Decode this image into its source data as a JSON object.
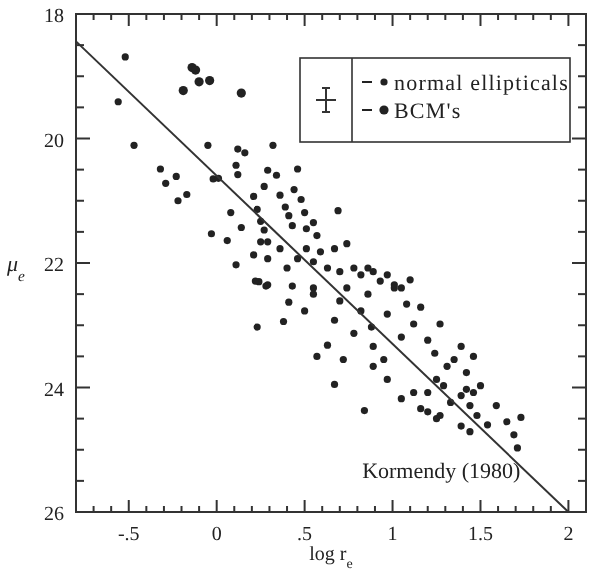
{
  "chart_data": {
    "type": "scatter",
    "xlabel": "log r$_{e}$",
    "ylabel": "μ$_{e}$",
    "xlim": [
      -0.8,
      2.1
    ],
    "ylim": [
      26,
      18
    ],
    "xticks": [
      {
        "value": -0.5,
        "label": "-.5"
      },
      0,
      {
        "value": 0.5,
        "label": ".5"
      },
      1,
      1.5,
      2,
      {
        "value": -0.7,
        "label": null
      },
      {
        "value": -0.6,
        "label": null
      },
      {
        "value": -0.4,
        "label": null
      },
      {
        "value": -0.3,
        "label": null
      },
      {
        "value": -0.2,
        "label": null
      },
      {
        "value": -0.1,
        "label": null
      },
      {
        "value": 0.1,
        "label": null
      },
      {
        "value": 0.2,
        "label": null
      },
      {
        "value": 0.3,
        "label": null
      },
      {
        "value": 0.4,
        "label": null
      },
      {
        "value": 0.6,
        "label": null
      },
      {
        "value": 0.7,
        "label": null
      },
      {
        "value": 0.8,
        "label": null
      },
      {
        "value": 0.9,
        "label": null
      },
      {
        "value": 1.1,
        "label": null
      },
      {
        "value": 1.2,
        "label": null
      },
      {
        "value": 1.3,
        "label": null
      },
      {
        "value": 1.4,
        "label": null
      },
      {
        "value": 1.6,
        "label": null
      },
      {
        "value": 1.7,
        "label": null
      },
      {
        "value": 1.8,
        "label": null
      },
      {
        "value": 1.9,
        "label": null
      }
    ],
    "yticks": [
      18,
      20,
      22,
      24,
      26,
      {
        "value": 18.5,
        "label": null
      },
      {
        "value": 19,
        "label": null
      },
      {
        "value": 19.5,
        "label": null
      },
      {
        "value": 20.5,
        "label": null
      },
      {
        "value": 21,
        "label": null
      },
      {
        "value": 21.5,
        "label": null
      },
      {
        "value": 22.5,
        "label": null
      },
      {
        "value": 23,
        "label": null
      },
      {
        "value": 23.5,
        "label": null
      },
      {
        "value": 24.5,
        "label": null
      },
      {
        "value": 25,
        "label": null
      },
      {
        "value": 25.5,
        "label": null
      }
    ],
    "grid": false,
    "legend": "top right",
    "marker": "circle",
    "series": [
      {
        "name": "normal ellipticals",
        "color": "#222222",
        "x": [
          -0.52,
          -0.56,
          -0.47,
          -0.32,
          -0.23,
          -0.29,
          -0.22,
          -0.17,
          -0.05,
          -0.02,
          0.01,
          -0.03,
          0.08,
          0.14,
          0.06,
          0.11,
          0.12,
          0.16,
          0.11,
          0.12,
          0.21,
          0.23,
          0.25,
          0.27,
          0.29,
          0.21,
          0.29,
          0.32,
          0.34,
          0.27,
          0.36,
          0.39,
          0.41,
          0.43,
          0.46,
          0.44,
          0.48,
          0.5,
          0.51,
          0.55,
          0.57,
          0.69,
          0.25,
          0.29,
          0.36,
          0.4,
          0.46,
          0.51,
          0.55,
          0.59,
          0.63,
          0.67,
          0.7,
          0.74,
          0.78,
          0.82,
          0.86,
          0.89,
          0.93,
          0.97,
          1.01,
          1.05,
          1.1,
          0.24,
          0.28,
          0.43,
          0.55,
          0.22,
          0.29,
          0.41,
          0.38,
          0.23,
          0.5,
          0.55,
          0.63,
          0.67,
          0.7,
          0.74,
          0.78,
          0.82,
          0.86,
          0.88,
          0.89,
          0.95,
          0.97,
          1.01,
          1.05,
          1.08,
          1.12,
          1.16,
          1.2,
          1.24,
          1.27,
          1.31,
          1.35,
          1.39,
          1.42,
          1.46,
          1.29,
          1.25,
          1.2,
          0.97,
          1.05,
          1.12,
          1.16,
          1.2,
          1.27,
          1.33,
          1.39,
          1.42,
          1.46,
          1.5,
          1.44,
          1.48,
          1.54,
          1.59,
          1.65,
          1.69,
          1.73,
          1.71,
          1.44,
          1.39,
          1.25,
          0.84,
          0.67,
          0.57,
          0.72,
          0.89
        ],
        "values": [
          18.69,
          19.41,
          20.11,
          20.49,
          20.61,
          20.72,
          21.0,
          20.9,
          20.11,
          20.65,
          20.64,
          21.53,
          21.19,
          21.43,
          21.64,
          22.03,
          20.17,
          20.23,
          20.43,
          20.58,
          20.93,
          21.14,
          21.33,
          21.47,
          21.66,
          21.87,
          20.51,
          20.11,
          20.59,
          20.77,
          20.91,
          21.1,
          21.24,
          21.4,
          20.49,
          20.82,
          20.98,
          21.19,
          21.45,
          21.35,
          21.56,
          21.16,
          21.66,
          21.93,
          21.77,
          22.08,
          21.93,
          21.77,
          21.98,
          21.82,
          22.08,
          21.77,
          22.14,
          21.69,
          22.08,
          22.19,
          22.08,
          22.14,
          22.29,
          22.19,
          22.35,
          22.4,
          22.27,
          22.3,
          22.37,
          22.37,
          22.4,
          22.29,
          22.35,
          22.63,
          22.94,
          23.03,
          22.77,
          22.5,
          23.32,
          22.92,
          22.61,
          22.4,
          23.13,
          22.77,
          22.5,
          23.03,
          23.34,
          23.55,
          22.82,
          22.4,
          23.19,
          22.66,
          22.98,
          22.71,
          23.24,
          23.45,
          22.98,
          23.66,
          23.55,
          23.34,
          23.76,
          23.5,
          23.97,
          23.87,
          24.08,
          23.87,
          24.18,
          24.08,
          24.34,
          24.39,
          24.45,
          24.24,
          24.13,
          24.03,
          24.08,
          23.97,
          24.29,
          24.45,
          24.6,
          24.29,
          24.55,
          24.76,
          24.48,
          24.97,
          24.71,
          24.62,
          24.5,
          24.37,
          23.95,
          23.5,
          23.55,
          23.66
        ]
      },
      {
        "name": "BCM's",
        "color": "#222222",
        "x": [
          -0.19,
          -0.14,
          -0.12,
          -0.1,
          -0.04,
          0.14
        ],
        "values": [
          19.23,
          18.86,
          18.9,
          19.09,
          19.07,
          19.27
        ]
      },
      {
        "name": "Kormendy (1980)",
        "type": "line",
        "color": "#333333",
        "marker": "none",
        "line_style": "solid",
        "x": [
          -0.8,
          2.0
        ],
        "values": [
          18.44,
          26
        ]
      }
    ]
  }
}
